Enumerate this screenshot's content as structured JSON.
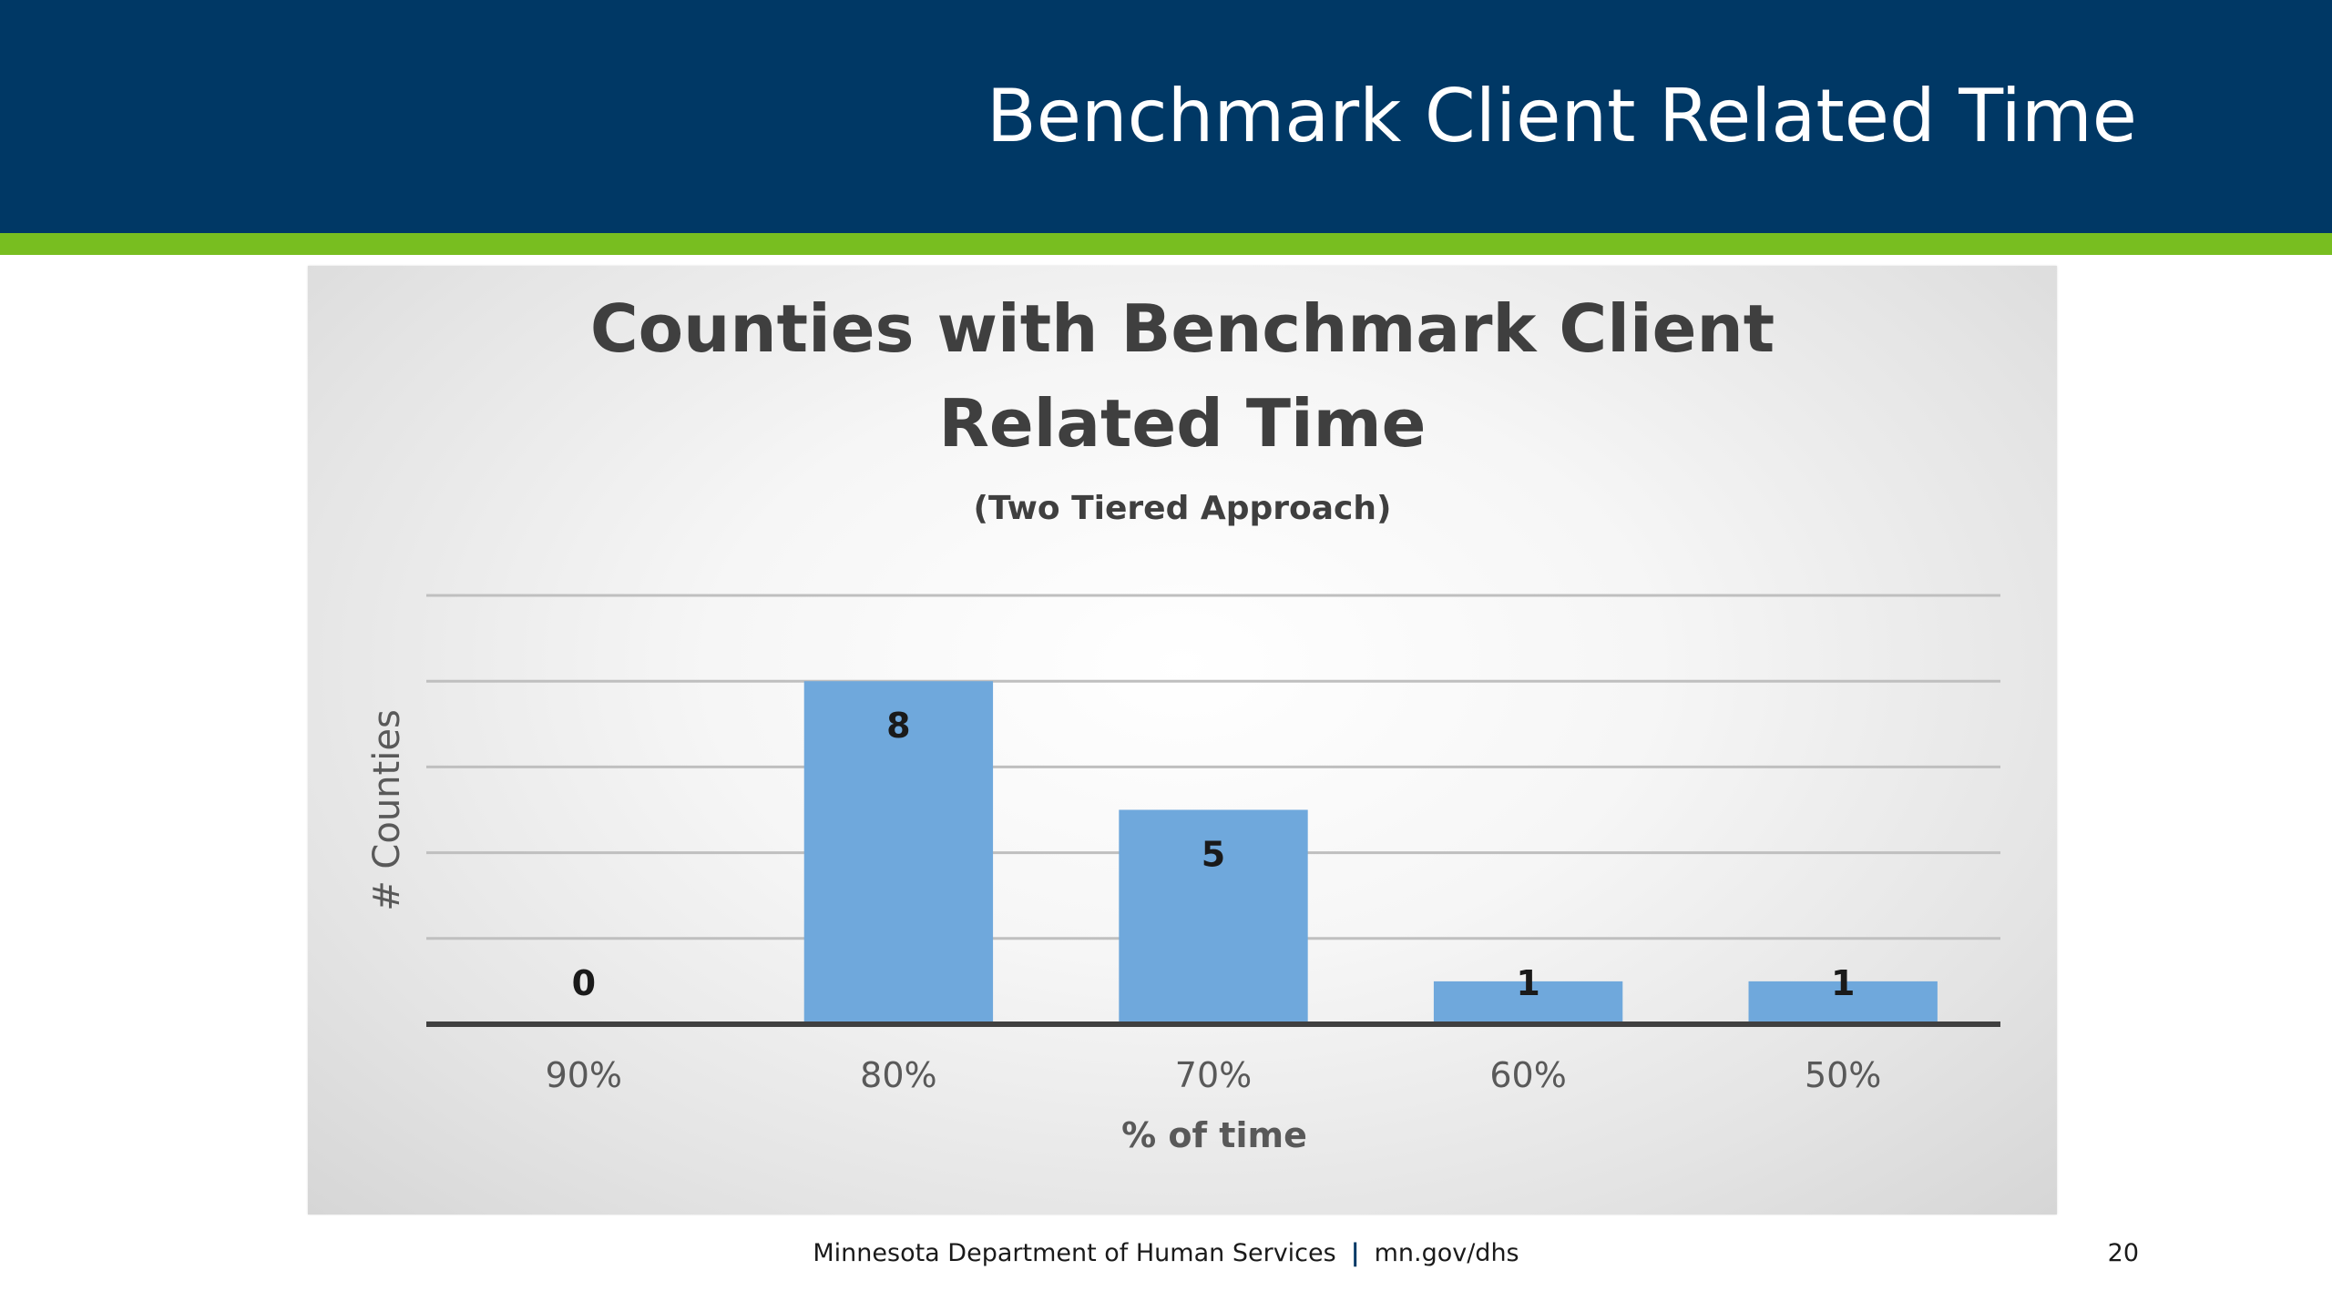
{
  "slide": {
    "title": "Benchmark Client Related Time",
    "footer_org": "Minnesota Department of Human Services",
    "footer_separator": "|",
    "footer_url": "mn.gov/dhs",
    "page_number": "20",
    "colors": {
      "header": "#003865",
      "accent": "#78be20",
      "bar": "#6fa8dc"
    }
  },
  "chart_data": {
    "type": "bar",
    "title_lines": [
      "Counties with Benchmark Client",
      "Related Time"
    ],
    "subtitle": "(Two Tiered Approach)",
    "categories": [
      "90%",
      "80%",
      "70%",
      "60%",
      "50%"
    ],
    "values": [
      0,
      8,
      5,
      1,
      1
    ],
    "data_labels": [
      "0",
      "8",
      "5",
      "1",
      "1"
    ],
    "xlabel": "% of time",
    "ylabel": "# Counties",
    "ylim": [
      0,
      10
    ],
    "gridlines": [
      2,
      4,
      6,
      8,
      10
    ],
    "grid": true,
    "legend": "none"
  }
}
